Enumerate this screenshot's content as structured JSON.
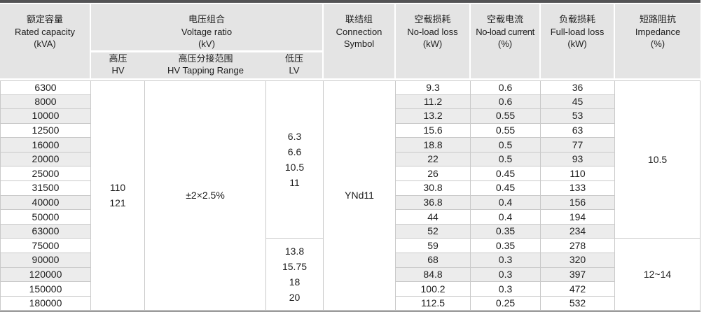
{
  "page": {
    "background": "#ffffff"
  },
  "table": {
    "title_semantic": "110kV power transformer technical specifications",
    "colors": {
      "top_border": "#535355",
      "header_bg": "#e4e4e4",
      "stripe_bg": "#ececec",
      "grid_line": "#c9c9c9",
      "bottom_border": "#9b9b9b",
      "text": "#1d1d1d"
    },
    "header": {
      "rated_capacity": [
        "额定容量",
        "Rated capacity",
        "(kVA)"
      ],
      "voltage_ratio": [
        "电压组合",
        "Voltage ratio",
        "(kV)"
      ],
      "hv": [
        "高压",
        "HV"
      ],
      "hv_tapping_range": [
        "高压分接范围",
        "HV Tapping Range"
      ],
      "lv": [
        "低压",
        "LV"
      ],
      "connection": [
        "联结组",
        "Connection",
        "Symbol"
      ],
      "no_load_loss": [
        "空载损耗",
        "No-load loss",
        "(kW)"
      ],
      "no_load_current": [
        "空载电流",
        "No-load current",
        "(%)"
      ],
      "full_load_loss": [
        "负载损耗",
        "Full-load loss",
        "(kW)"
      ],
      "impedance": [
        "短路阻抗",
        "Impedance",
        "(%)"
      ]
    },
    "merged": {
      "hv_values": [
        "110",
        "121"
      ],
      "tapping_range": "±2×2.5%",
      "lv_group1": [
        "6.3",
        "6.6",
        "10.5",
        "11"
      ],
      "lv_group2": [
        "13.8",
        "15.75",
        "18",
        "20"
      ],
      "connection_symbol": "YNd11",
      "impedance_group1": "10.5",
      "impedance_group2": "12~14",
      "group1_rows": 11,
      "group2_rows": 5
    },
    "rows": [
      {
        "capacity": "6300",
        "no_load_loss": "9.3",
        "no_load_current": "0.6",
        "full_load_loss": "36",
        "shaded": false
      },
      {
        "capacity": "8000",
        "no_load_loss": "11.2",
        "no_load_current": "0.6",
        "full_load_loss": "45",
        "shaded": true
      },
      {
        "capacity": "10000",
        "no_load_loss": "13.2",
        "no_load_current": "0.55",
        "full_load_loss": "53",
        "shaded": true
      },
      {
        "capacity": "12500",
        "no_load_loss": "15.6",
        "no_load_current": "0.55",
        "full_load_loss": "63",
        "shaded": false
      },
      {
        "capacity": "16000",
        "no_load_loss": "18.8",
        "no_load_current": "0.5",
        "full_load_loss": "77",
        "shaded": true
      },
      {
        "capacity": "20000",
        "no_load_loss": "22",
        "no_load_current": "0.5",
        "full_load_loss": "93",
        "shaded": true
      },
      {
        "capacity": "25000",
        "no_load_loss": "26",
        "no_load_current": "0.45",
        "full_load_loss": "110",
        "shaded": false
      },
      {
        "capacity": "31500",
        "no_load_loss": "30.8",
        "no_load_current": "0.45",
        "full_load_loss": "133",
        "shaded": false
      },
      {
        "capacity": "40000",
        "no_load_loss": "36.8",
        "no_load_current": "0.4",
        "full_load_loss": "156",
        "shaded": true
      },
      {
        "capacity": "50000",
        "no_load_loss": "44",
        "no_load_current": "0.4",
        "full_load_loss": "194",
        "shaded": false
      },
      {
        "capacity": "63000",
        "no_load_loss": "52",
        "no_load_current": "0.35",
        "full_load_loss": "234",
        "shaded": true
      },
      {
        "capacity": "75000",
        "no_load_loss": "59",
        "no_load_current": "0.35",
        "full_load_loss": "278",
        "shaded": false
      },
      {
        "capacity": "90000",
        "no_load_loss": "68",
        "no_load_current": "0.3",
        "full_load_loss": "320",
        "shaded": true
      },
      {
        "capacity": "120000",
        "no_load_loss": "84.8",
        "no_load_current": "0.3",
        "full_load_loss": "397",
        "shaded": true
      },
      {
        "capacity": "150000",
        "no_load_loss": "100.2",
        "no_load_current": "0.3",
        "full_load_loss": "472",
        "shaded": false
      },
      {
        "capacity": "180000",
        "no_load_loss": "112.5",
        "no_load_current": "0.25",
        "full_load_loss": "532",
        "shaded": false
      }
    ]
  }
}
